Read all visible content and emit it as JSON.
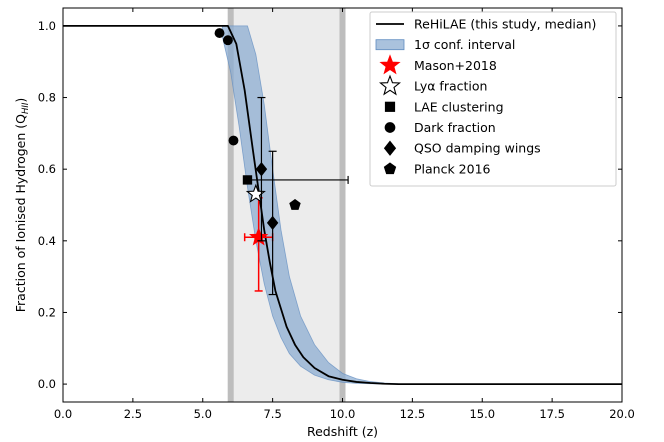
{
  "chart_data": {
    "type": "line",
    "xlabel": "Redshift (z)",
    "ylabel": "Fraction of Ionised Hydrogen (Q",
    "ylabel_sub": "HII",
    "ylabel_close": ")",
    "xlim": [
      0,
      20
    ],
    "ylim": [
      -0.05,
      1.05
    ],
    "xticks": [
      0.0,
      2.5,
      5.0,
      7.5,
      10.0,
      12.5,
      15.0,
      17.5,
      20.0
    ],
    "xtick_labels": [
      "0.0",
      "2.5",
      "5.0",
      "7.5",
      "10.0",
      "12.5",
      "15.0",
      "17.5",
      "20.0"
    ],
    "yticks": [
      0.0,
      0.2,
      0.4,
      0.6,
      0.8,
      1.0
    ],
    "ytick_labels": [
      "0.0",
      "0.2",
      "0.4",
      "0.6",
      "0.8",
      "1.0"
    ],
    "legend_position": "top-right",
    "shaded_region": {
      "x": [
        6.0,
        10.0
      ],
      "color": "#ececec",
      "edge_color": "#bdbdbd"
    },
    "median_curve": {
      "name": "ReHiLAE (this study, median)",
      "color": "#000000",
      "x": [
        0,
        5.5,
        5.9,
        6.2,
        6.5,
        6.8,
        7.0,
        7.2,
        7.4,
        7.6,
        7.8,
        8.0,
        8.3,
        8.6,
        9.0,
        9.5,
        10.0,
        10.5,
        11.0,
        11.5,
        12.0,
        13.0,
        20.0
      ],
      "y": [
        1.0,
        1.0,
        1.0,
        0.95,
        0.82,
        0.65,
        0.54,
        0.43,
        0.34,
        0.26,
        0.21,
        0.16,
        0.11,
        0.075,
        0.045,
        0.022,
        0.012,
        0.006,
        0.003,
        0.001,
        0.0,
        0.0,
        0.0
      ]
    },
    "confidence_band": {
      "name": "1σ conf. interval",
      "color": "#8eaed2",
      "x": [
        5.7,
        6.0,
        6.3,
        6.6,
        6.9,
        7.2,
        7.5,
        7.8,
        8.1,
        8.5,
        9.0,
        9.5,
        10.0,
        10.5,
        11.0,
        11.5,
        12.0,
        12.5
      ],
      "upper": [
        1.0,
        1.0,
        1.0,
        1.0,
        0.92,
        0.78,
        0.6,
        0.43,
        0.3,
        0.19,
        0.11,
        0.06,
        0.03,
        0.015,
        0.007,
        0.003,
        0.001,
        0.0
      ],
      "lower": [
        0.97,
        0.87,
        0.72,
        0.55,
        0.4,
        0.28,
        0.19,
        0.13,
        0.085,
        0.05,
        0.025,
        0.012,
        0.005,
        0.002,
        0.001,
        0.0,
        0.0,
        0.0
      ]
    },
    "series": [
      {
        "name": "Mason+2018",
        "marker": "star",
        "color": "#ff0000",
        "filled": true,
        "points": [
          {
            "x": 7.0,
            "y": 0.41,
            "xerr": [
              0.5,
              0.5
            ],
            "yerr": [
              0.15,
              0.11
            ]
          }
        ]
      },
      {
        "name": "Lyα fraction",
        "marker": "star",
        "color": "#000000",
        "filled": false,
        "points": [
          {
            "x": 6.9,
            "y": 0.53
          }
        ]
      },
      {
        "name": "LAE clustering",
        "marker": "square",
        "color": "#000000",
        "filled": true,
        "points": [
          {
            "x": 6.6,
            "y": 0.57,
            "xerr": [
              0,
              3.6
            ]
          }
        ]
      },
      {
        "name": "Dark fraction",
        "marker": "circle",
        "color": "#000000",
        "filled": true,
        "points": [
          {
            "x": 5.6,
            "y": 0.98
          },
          {
            "x": 5.9,
            "y": 0.96
          },
          {
            "x": 6.1,
            "y": 0.68
          }
        ]
      },
      {
        "name": "QSO damping wings",
        "marker": "diamond",
        "color": "#000000",
        "filled": true,
        "points": [
          {
            "x": 7.1,
            "y": 0.6,
            "yerr": [
              0.2,
              0.2
            ]
          },
          {
            "x": 7.5,
            "y": 0.45,
            "yerr": [
              0.2,
              0.2
            ]
          }
        ]
      },
      {
        "name": "Planck 2016",
        "marker": "pentagon",
        "color": "#000000",
        "filled": true,
        "points": [
          {
            "x": 8.3,
            "y": 0.5
          }
        ]
      }
    ],
    "legend_items": [
      {
        "label": "ReHiLAE (this study, median)",
        "kind": "line",
        "color": "#000000"
      },
      {
        "label": "1σ conf. interval",
        "kind": "band",
        "color": "#8eaed2"
      },
      {
        "label": "Mason+2018",
        "kind": "star",
        "color": "#ff0000",
        "filled": true
      },
      {
        "label": "Lyα fraction",
        "kind": "star",
        "color": "#000000",
        "filled": false
      },
      {
        "label": "LAE clustering",
        "kind": "square",
        "color": "#000000",
        "filled": true
      },
      {
        "label": "Dark fraction",
        "kind": "circle",
        "color": "#000000",
        "filled": true
      },
      {
        "label": "QSO damping wings",
        "kind": "diamond",
        "color": "#000000",
        "filled": true
      },
      {
        "label": "Planck 2016",
        "kind": "pentagon",
        "color": "#000000",
        "filled": true
      }
    ]
  }
}
